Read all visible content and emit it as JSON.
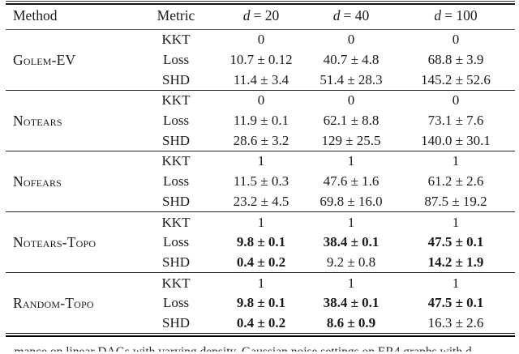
{
  "table": {
    "header": {
      "method": "Method",
      "metric": "Metric",
      "cols": [
        {
          "var": "d",
          "eq": "= 20"
        },
        {
          "var": "d",
          "eq": "= 40"
        },
        {
          "var": "d",
          "eq": "= 100"
        }
      ]
    },
    "groups": [
      {
        "method": "Golem-EV",
        "rows": [
          {
            "metric": "KKT",
            "v": [
              "0",
              "0",
              "0"
            ]
          },
          {
            "metric": "Loss",
            "v": [
              "10.7 ± 0.12",
              "40.7 ± 4.8",
              "68.8 ± 3.9"
            ]
          },
          {
            "metric": "SHD",
            "v": [
              "11.4 ± 3.4",
              "51.4 ± 28.3",
              "145.2 ± 52.6"
            ]
          }
        ]
      },
      {
        "method": "Notears",
        "rows": [
          {
            "metric": "KKT",
            "v": [
              "0",
              "0",
              "0"
            ]
          },
          {
            "metric": "Loss",
            "v": [
              "11.9 ± 0.1",
              "62.1 ± 8.8",
              "73.1 ± 7.6"
            ]
          },
          {
            "metric": "SHD",
            "v": [
              "28.6 ± 3.2",
              "129 ± 25.5",
              "140.0 ± 30.1"
            ]
          }
        ]
      },
      {
        "method": "Nofears",
        "rows": [
          {
            "metric": "KKT",
            "v": [
              "1",
              "1",
              "1"
            ]
          },
          {
            "metric": "Loss",
            "v": [
              "11.5 ± 0.3",
              "47.6 ± 1.6",
              "61.2 ± 2.6"
            ]
          },
          {
            "metric": "SHD",
            "v": [
              "23.2 ± 4.5",
              "69.8 ± 16.0",
              "87.5 ± 19.2"
            ]
          }
        ]
      },
      {
        "method": "Notears-Topo",
        "rows": [
          {
            "metric": "KKT",
            "v": [
              "1",
              "1",
              "1"
            ]
          },
          {
            "metric": "Loss",
            "v": [
              "9.8 ± 0.1",
              "38.4 ± 0.1",
              "47.5 ± 0.1"
            ],
            "bold": [
              true,
              true,
              true
            ]
          },
          {
            "metric": "SHD",
            "v": [
              "0.4 ± 0.2",
              "9.2 ± 0.8",
              "14.2 ± 1.9"
            ],
            "bold": [
              true,
              false,
              true
            ]
          }
        ]
      },
      {
        "method": "Random-Topo",
        "rows": [
          {
            "metric": "KKT",
            "v": [
              "1",
              "1",
              "1"
            ]
          },
          {
            "metric": "Loss",
            "v": [
              "9.8 ± 0.1",
              "38.4 ± 0.1",
              "47.5 ± 0.1"
            ],
            "bold": [
              true,
              true,
              true
            ]
          },
          {
            "metric": "SHD",
            "v": [
              "0.4 ± 0.2",
              "8.6 ± 0.9",
              "16.3 ± 2.6"
            ],
            "bold": [
              true,
              true,
              false
            ]
          }
        ]
      }
    ]
  },
  "caption": {
    "clipped_text": "…mance on linear DAGs with varying density. Gaussian noise settings on ER4 graphs with d…"
  },
  "colors": {
    "text": "#1a1a1a",
    "rule_dark": "#000000",
    "rule_gray": "#555555",
    "background": "#ffffff"
  }
}
